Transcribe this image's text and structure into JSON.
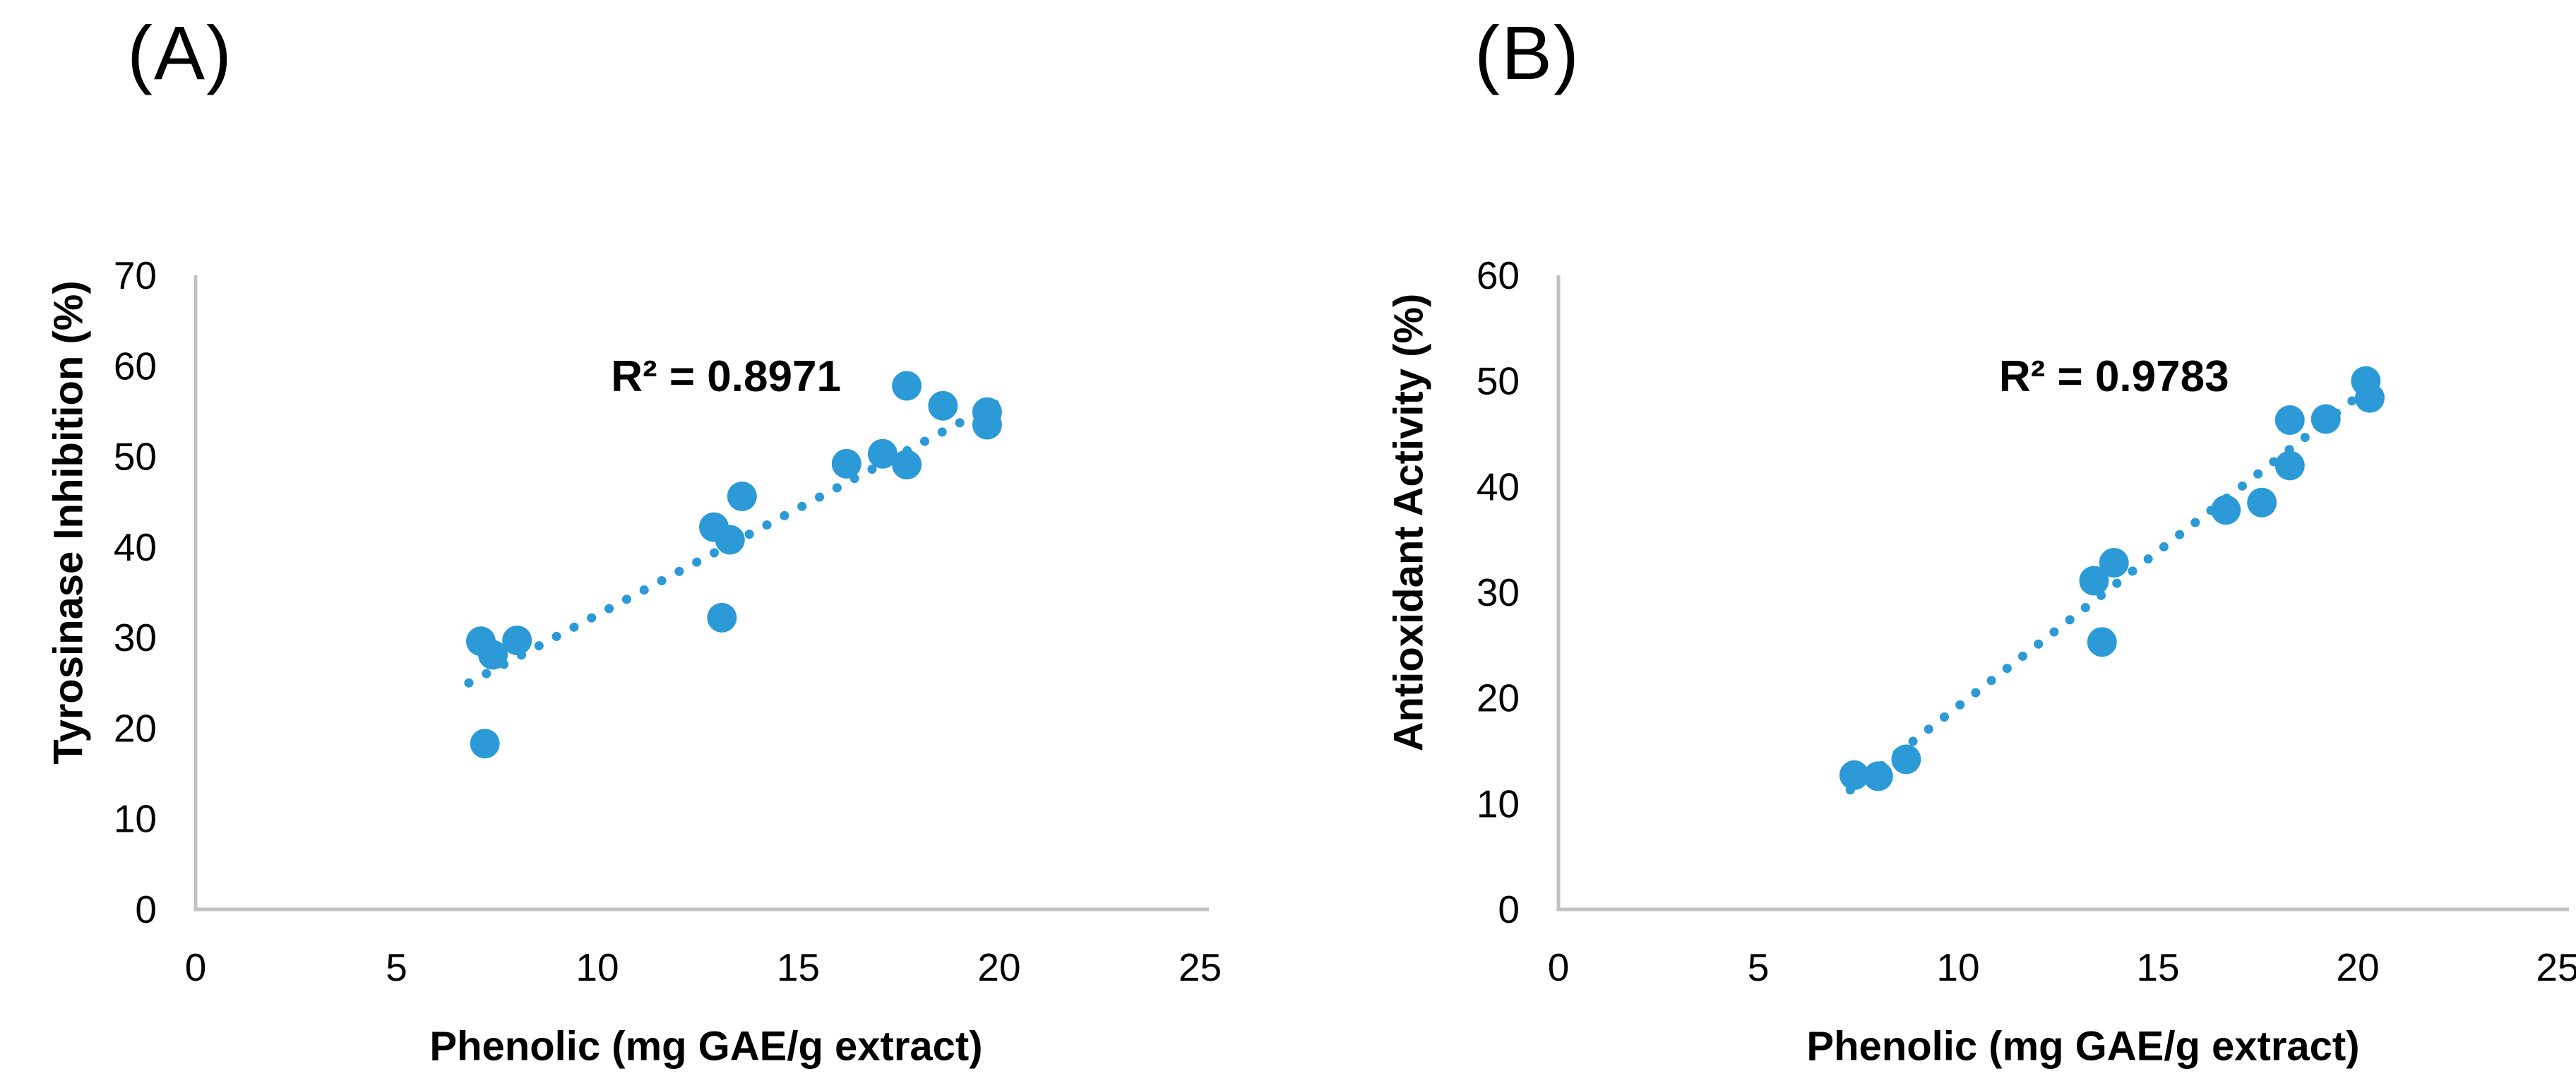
{
  "figure": {
    "background": "#ffffff"
  },
  "colors": {
    "marker": "#2B9AD6",
    "trendline": "#2B9AD6",
    "axis_line": "#C1C1C1",
    "text": "#000000"
  },
  "chart_data": [
    {
      "type": "scatter",
      "panel_label": "(A)",
      "xlabel": "Phenolic (mg GAE/g extract)",
      "ylabel": "Tyrosinase Inhibition (%)",
      "xlim": [
        0,
        25
      ],
      "ylim": [
        0,
        70
      ],
      "xticks": [
        0,
        5,
        10,
        15,
        20,
        25
      ],
      "yticks": [
        0,
        10,
        20,
        30,
        40,
        50,
        60,
        70
      ],
      "grid": false,
      "legend": false,
      "annotation": {
        "text": "R² = 0.8971",
        "x": 13.2,
        "y": 58.8
      },
      "trendline": {
        "style": "dotted",
        "from": [
          6.8,
          25.0
        ],
        "to": [
          19.9,
          55.8
        ]
      },
      "points": [
        [
          7.2,
          18.3
        ],
        [
          7.1,
          29.6
        ],
        [
          7.4,
          28.1
        ],
        [
          8.0,
          29.7
        ],
        [
          12.9,
          42.2
        ],
        [
          13.3,
          40.8
        ],
        [
          13.6,
          45.6
        ],
        [
          13.1,
          32.2
        ],
        [
          16.2,
          49.2
        ],
        [
          17.1,
          50.3
        ],
        [
          17.7,
          49.1
        ],
        [
          17.7,
          57.8
        ],
        [
          18.6,
          55.6
        ],
        [
          19.7,
          54.9
        ],
        [
          19.7,
          53.5
        ]
      ]
    },
    {
      "type": "scatter",
      "panel_label": "(B)",
      "xlabel": "Phenolic (mg GAE/g extract)",
      "ylabel": "Antioxidant Activity (%)",
      "xlim": [
        0,
        25
      ],
      "ylim": [
        0,
        60
      ],
      "xticks": [
        0,
        5,
        10,
        15,
        20,
        25
      ],
      "yticks": [
        0,
        10,
        20,
        30,
        40,
        50,
        60
      ],
      "grid": false,
      "legend": false,
      "annotation": {
        "text": "R² = 0.9783",
        "x": 13.9,
        "y": 50.4
      },
      "trendline": {
        "style": "dotted",
        "from": [
          7.3,
          11.3
        ],
        "to": [
          20.5,
          50.0
        ]
      },
      "points": [
        [
          7.4,
          12.7
        ],
        [
          8.0,
          12.6
        ],
        [
          8.7,
          14.2
        ],
        [
          13.4,
          31.1
        ],
        [
          13.9,
          32.8
        ],
        [
          13.6,
          25.3
        ],
        [
          16.7,
          37.8
        ],
        [
          17.6,
          38.5
        ],
        [
          18.3,
          42.0
        ],
        [
          18.3,
          46.3
        ],
        [
          19.2,
          46.4
        ],
        [
          20.2,
          50.0
        ],
        [
          20.3,
          48.4
        ]
      ]
    }
  ]
}
